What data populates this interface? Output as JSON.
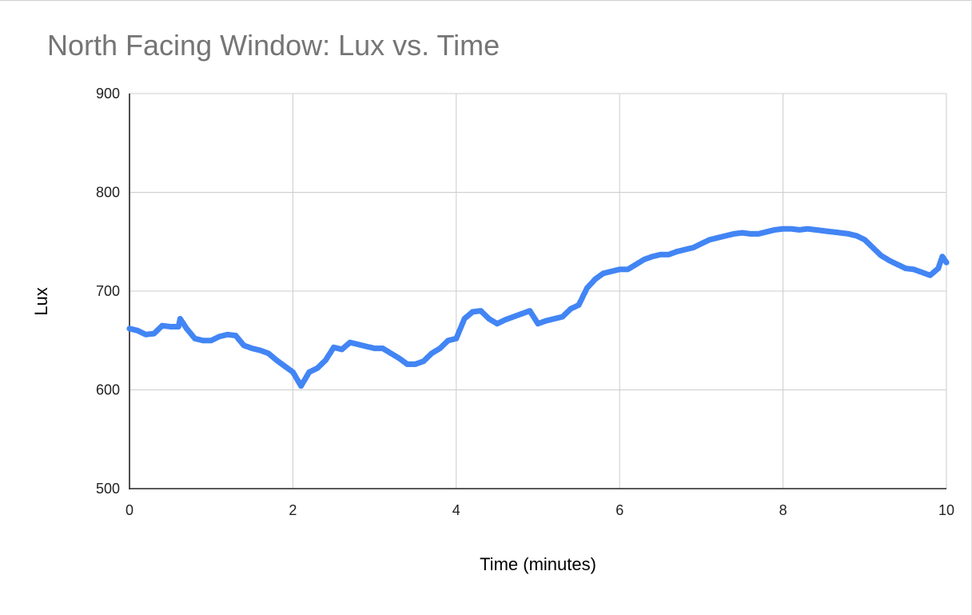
{
  "chart_data": {
    "type": "scatter",
    "title": "North Facing Window: Lux vs. Time",
    "xlabel": "Time (minutes)",
    "ylabel": "Lux",
    "xlim": [
      0,
      10
    ],
    "ylim": [
      500,
      900
    ],
    "xticks": [
      0,
      2,
      4,
      6,
      8,
      10
    ],
    "yticks": [
      500,
      600,
      700,
      800,
      900
    ],
    "grid": true,
    "series": [
      {
        "color": "#4285f4",
        "x": [
          0,
          0.1,
          0.2,
          0.3,
          0.4,
          0.5,
          0.6,
          0.62,
          0.7,
          0.8,
          0.9,
          1.0,
          1.1,
          1.2,
          1.3,
          1.4,
          1.5,
          1.6,
          1.7,
          1.8,
          1.9,
          2.0,
          2.1,
          2.2,
          2.3,
          2.4,
          2.5,
          2.6,
          2.7,
          2.8,
          2.9,
          3.0,
          3.1,
          3.2,
          3.3,
          3.4,
          3.5,
          3.6,
          3.7,
          3.8,
          3.9,
          4.0,
          4.1,
          4.2,
          4.3,
          4.4,
          4.5,
          4.6,
          4.7,
          4.8,
          4.9,
          5.0,
          5.1,
          5.2,
          5.3,
          5.4,
          5.5,
          5.6,
          5.7,
          5.8,
          5.9,
          6.0,
          6.1,
          6.2,
          6.3,
          6.4,
          6.5,
          6.6,
          6.7,
          6.8,
          6.9,
          7.0,
          7.1,
          7.2,
          7.3,
          7.4,
          7.5,
          7.6,
          7.7,
          7.8,
          7.9,
          8.0,
          8.1,
          8.2,
          8.3,
          8.4,
          8.5,
          8.6,
          8.7,
          8.8,
          8.9,
          9.0,
          9.1,
          9.2,
          9.3,
          9.4,
          9.5,
          9.6,
          9.7,
          9.8,
          9.9,
          9.95,
          10.0
        ],
        "y": [
          662,
          660,
          656,
          657,
          665,
          664,
          664,
          672,
          662,
          652,
          650,
          650,
          654,
          656,
          655,
          645,
          642,
          640,
          637,
          630,
          624,
          618,
          604,
          618,
          622,
          630,
          643,
          641,
          648,
          646,
          644,
          642,
          642,
          637,
          632,
          626,
          626,
          629,
          637,
          642,
          650,
          652,
          672,
          679,
          680,
          672,
          667,
          671,
          674,
          677,
          680,
          667,
          670,
          672,
          674,
          682,
          686,
          703,
          712,
          718,
          720,
          722,
          722,
          727,
          732,
          735,
          737,
          737,
          740,
          742,
          744,
          748,
          752,
          754,
          756,
          758,
          759,
          758,
          758,
          760,
          762,
          763,
          763,
          762,
          763,
          762,
          761,
          760,
          759,
          758,
          756,
          752,
          744,
          736,
          731,
          727,
          723,
          722,
          719,
          716,
          723,
          735,
          729
        ]
      }
    ]
  }
}
